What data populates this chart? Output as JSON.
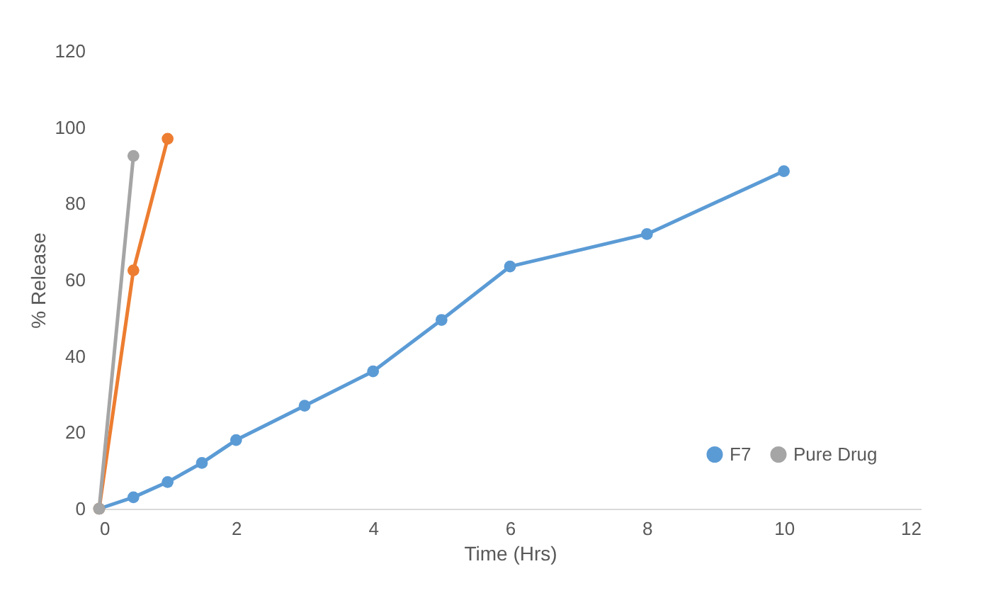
{
  "chart_data": {
    "type": "line",
    "xlabel": "Time (Hrs)",
    "ylabel": "% Release",
    "xlim": [
      0,
      12
    ],
    "xticks": [
      0,
      2,
      4,
      6,
      8,
      10,
      12
    ],
    "ylim": [
      0,
      120
    ],
    "yticks": [
      0,
      20,
      40,
      60,
      80,
      100,
      120
    ],
    "grid": false,
    "legend": "bottom right",
    "marker": "circle",
    "line_style": "solid",
    "series": [
      {
        "name": "F7",
        "color": "#5b9bd5",
        "x": [
          0,
          0.5,
          1,
          1.5,
          2,
          3,
          4,
          5,
          6,
          8,
          10
        ],
        "values": [
          0,
          3,
          7,
          12,
          18,
          27,
          36,
          49.5,
          63.5,
          72,
          88.5
        ]
      },
      {
        "color": "#ed7d31",
        "x": [
          0,
          0.5,
          1
        ],
        "values": [
          0,
          62.5,
          97
        ]
      },
      {
        "name": "Pure Drug",
        "color": "#a5a5a5",
        "x": [
          0,
          0.5
        ],
        "values": [
          0,
          92.5
        ]
      }
    ]
  }
}
